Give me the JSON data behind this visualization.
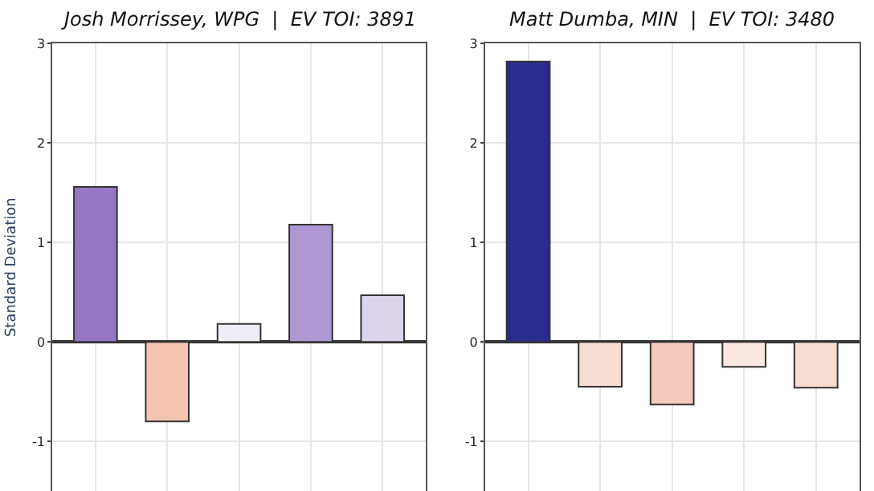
{
  "chart_data": [
    {
      "type": "bar",
      "title": "Josh Morrissey, WPG  |  EV TOI: 3891",
      "ylabel": "Standard Deviation",
      "categories": [
        null,
        null,
        null,
        null,
        null
      ],
      "values": [
        1.56,
        -0.8,
        0.18,
        1.18,
        0.47
      ],
      "colors": [
        "#9478c4",
        "#f4c3b2",
        "#efedf5",
        "#ad98d4",
        "#dcd5ec"
      ],
      "ylim": [
        -1.5,
        3
      ],
      "yticks": [
        -1,
        0,
        1,
        2,
        3
      ],
      "grid": true,
      "tick_labels": "y"
    },
    {
      "type": "bar",
      "title": "Matt Dumba, MIN  |  EV TOI: 3480",
      "categories": [
        null,
        null,
        null,
        null,
        null
      ],
      "values": [
        2.82,
        -0.45,
        -0.63,
        -0.25,
        -0.46
      ],
      "colors": [
        "#2a2a8f",
        "#f7dcd3",
        "#f5cbbd",
        "#fbe8e2",
        "#f8ddd3"
      ],
      "ylim": [
        -1.5,
        3
      ],
      "yticks": [
        -1,
        0,
        1,
        2,
        3
      ],
      "grid": true,
      "tick_labels": "y"
    }
  ]
}
